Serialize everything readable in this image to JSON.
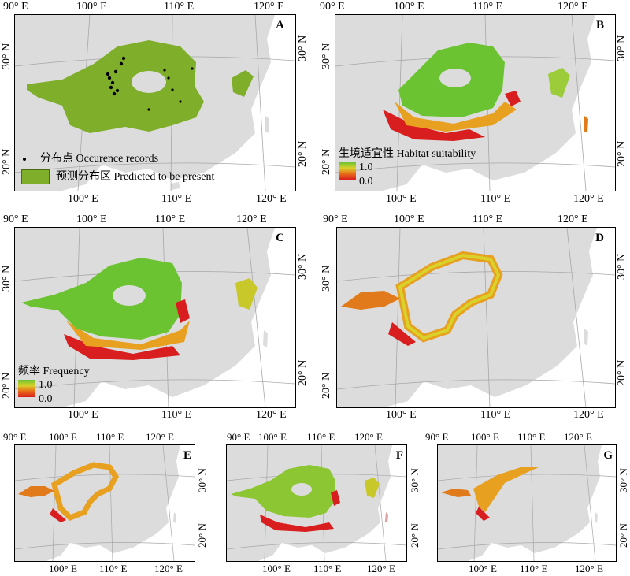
{
  "panels": [
    {
      "id": "A",
      "lon_top": [
        "90° E",
        "100° E",
        "110° E",
        "120° E"
      ],
      "lon_bottom": [
        "100° E",
        "110° E",
        "120° E"
      ],
      "lat": [
        "30° N",
        "20° N"
      ]
    },
    {
      "id": "B",
      "lon_top": [
        "90° E",
        "100° E",
        "110° E",
        "120° E"
      ],
      "lon_bottom": [
        "100° E",
        "110° E",
        "120° E"
      ],
      "lat": [
        "30° N",
        "20° N"
      ]
    },
    {
      "id": "C",
      "lon_top": [
        "90° E",
        "100° E",
        "110° E",
        "120° E"
      ],
      "lon_bottom": [
        "100° E",
        "110° E",
        "120° E"
      ],
      "lat": [
        "30° N",
        "20° N"
      ]
    },
    {
      "id": "D",
      "lon_top": [
        "90° E",
        "100° E",
        "110° E",
        "120° E"
      ],
      "lon_bottom": [
        "100° E",
        "110° E",
        "120° E"
      ],
      "lat": [
        "30° N",
        "20° N"
      ]
    },
    {
      "id": "E",
      "lon_top": [
        "90° E",
        "100° E",
        "110° E",
        "120° E"
      ],
      "lon_bottom": [
        "100° E",
        "110° E",
        "120° E"
      ],
      "lat": [
        "30° N",
        "20° N"
      ]
    },
    {
      "id": "F",
      "lon_top": [
        "90° E",
        "100° E",
        "110° E",
        "120° E"
      ],
      "lon_bottom": [
        "100° E",
        "110° E",
        "120° E"
      ],
      "lat": [
        "30° N",
        "20° N"
      ]
    },
    {
      "id": "G",
      "lon_top": [
        "90° E",
        "100° E",
        "110° E",
        "120° E"
      ],
      "lon_bottom": [
        "100° E",
        "110° E",
        "120° E"
      ],
      "lat": [
        "30° N",
        "20° N"
      ]
    }
  ],
  "legend_a": {
    "points": "分布点 Occurence records",
    "area": "预测分布区 Predicted to be present"
  },
  "legend_b": {
    "title": "生境适宜性 Habitat suitability",
    "high": "1.0",
    "low": "0.0"
  },
  "legend_c": {
    "title": "频率 Frequency",
    "high": "1.0",
    "low": "0.0"
  },
  "colors": {
    "land": "#dcdcdc",
    "predicted": "#7fae2a",
    "high": "#6cc332",
    "mid": "#d8d22a",
    "low": "#d81e1e",
    "graticule": "#a8a8a8"
  }
}
